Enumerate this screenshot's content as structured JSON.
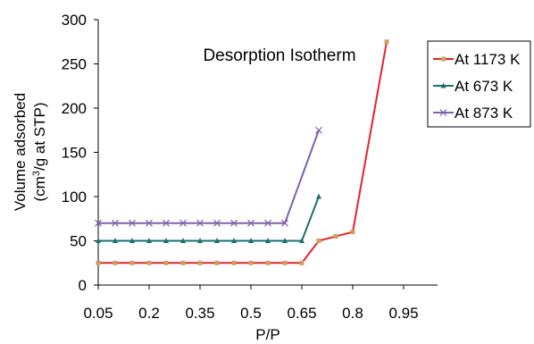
{
  "chart_data": {
    "type": "line",
    "title": "Desorption Isotherm",
    "xlabel": "P/P",
    "ylabel_line1": "Volume adsorbed",
    "ylabel_line2_prefix": "(cm",
    "ylabel_line2_sup": "3",
    "ylabel_line2_suffix": "/g at STP)",
    "xlim": [
      0.05,
      1.05
    ],
    "ylim": [
      0,
      300
    ],
    "x_ticks": [
      0.05,
      0.2,
      0.35,
      0.5,
      0.65,
      0.8,
      0.95
    ],
    "x_tick_labels": [
      "0.05",
      "0.2",
      "0.35",
      "0.5",
      "0.65",
      "0.8",
      "0.95"
    ],
    "y_ticks": [
      0,
      50,
      100,
      150,
      200,
      250,
      300
    ],
    "y_tick_labels": [
      "0",
      "50",
      "100",
      "150",
      "200",
      "250",
      "300"
    ],
    "grid": false,
    "legend_position": "right",
    "series": [
      {
        "name": "At 1173 K",
        "color": "#e8202a",
        "marker": "square",
        "marker_color": "#c8a060",
        "x": [
          0.05,
          0.1,
          0.15,
          0.2,
          0.25,
          0.3,
          0.35,
          0.4,
          0.45,
          0.5,
          0.55,
          0.6,
          0.65,
          0.7,
          0.75,
          0.8,
          0.9
        ],
        "y": [
          25,
          25,
          25,
          25,
          25,
          25,
          25,
          25,
          25,
          25,
          25,
          25,
          25,
          50,
          55,
          60,
          275
        ]
      },
      {
        "name": "At 673 K",
        "color": "#1f6f6f",
        "marker": "triangle",
        "marker_color": "#1f6f6f",
        "x": [
          0.05,
          0.1,
          0.15,
          0.2,
          0.25,
          0.3,
          0.35,
          0.4,
          0.45,
          0.5,
          0.55,
          0.6,
          0.65,
          0.7
        ],
        "y": [
          50,
          50,
          50,
          50,
          50,
          50,
          50,
          50,
          50,
          50,
          50,
          50,
          50,
          100
        ]
      },
      {
        "name": "At 873 K",
        "color": "#8060b0",
        "marker": "x",
        "marker_color": "#8060b0",
        "x": [
          0.05,
          0.1,
          0.15,
          0.2,
          0.25,
          0.3,
          0.35,
          0.4,
          0.45,
          0.5,
          0.55,
          0.6,
          0.7
        ],
        "y": [
          70,
          70,
          70,
          70,
          70,
          70,
          70,
          70,
          70,
          70,
          70,
          70,
          175
        ]
      }
    ]
  }
}
